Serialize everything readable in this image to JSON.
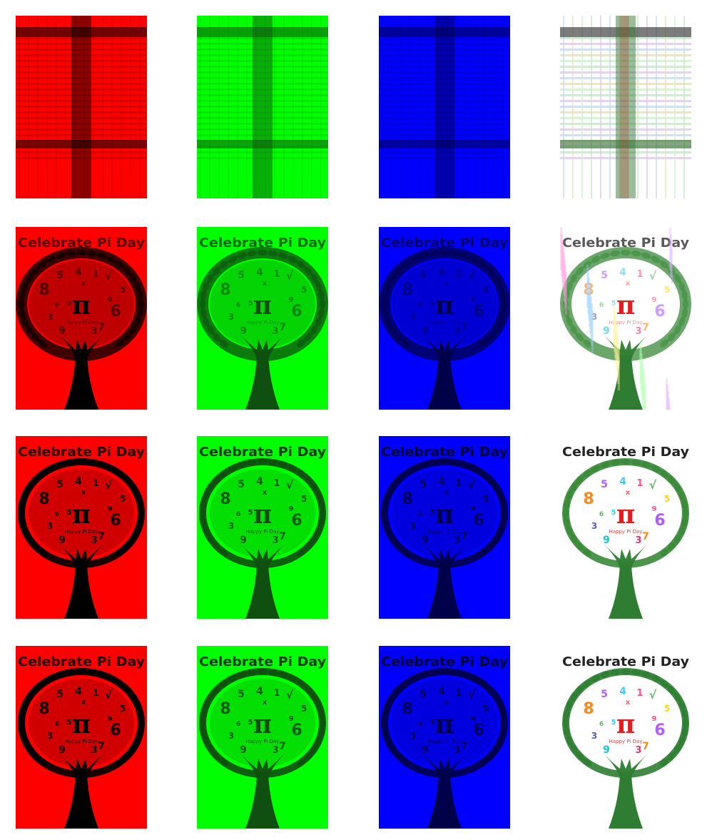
{
  "figure": {
    "description_rows": [
      "row-1",
      "row-2",
      "row-3",
      "row-4"
    ],
    "columns": [
      {
        "channel": "red",
        "color": "#ff0000",
        "dark": "#000000"
      },
      {
        "channel": "green",
        "color": "#00ff00",
        "dark": "#0f4f0f"
      },
      {
        "channel": "blue",
        "color": "#0000ff",
        "dark": "#00004a"
      },
      {
        "channel": "composite",
        "color": "#ffffff",
        "dark": "#1a6b1a"
      }
    ],
    "rows": [
      {
        "quality": "very-low",
        "title": ""
      },
      {
        "quality": "low",
        "title": "Celebrate Pi Day"
      },
      {
        "quality": "medium",
        "title": "Celebrate Pi Day"
      },
      {
        "quality": "high",
        "title": "Celebrate Pi Day"
      }
    ],
    "poster": {
      "title": "Celebrate Pi Day",
      "symbol": "π",
      "subtitle": "Happy Pi Day",
      "digits": [
        "8",
        "5",
        "4",
        "1",
        "√",
        "5",
        "x",
        "3",
        "9",
        "3",
        "7",
        "6",
        "5",
        "9",
        "6"
      ]
    }
  }
}
